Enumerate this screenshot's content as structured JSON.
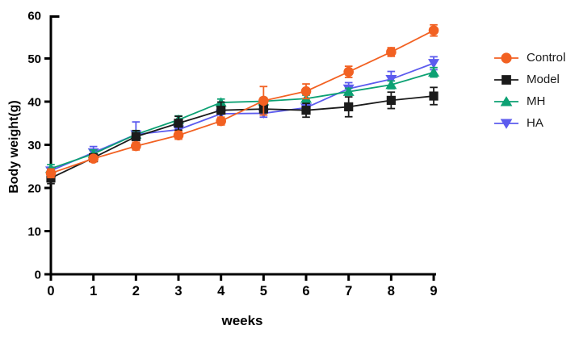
{
  "figure": {
    "background": "#ffffff",
    "axis_color": "#000000"
  },
  "chart_data": {
    "type": "line",
    "title": "",
    "xlabel": "weeks",
    "ylabel": "Body weight(g)",
    "x": [
      0,
      1,
      2,
      3,
      4,
      5,
      6,
      7,
      8,
      9
    ],
    "x_ticks": [
      0,
      1,
      2,
      3,
      4,
      5,
      6,
      7,
      8,
      9
    ],
    "y_ticks": [
      0,
      10,
      20,
      30,
      40,
      50,
      60
    ],
    "xlim": [
      0,
      9
    ],
    "ylim": [
      0,
      60
    ],
    "grid": false,
    "legend_position": "right",
    "error_bars": "sem, both directions with caps",
    "series": [
      {
        "name": "Control",
        "marker": "circle",
        "color": "#F26122",
        "values": [
          23.4,
          26.8,
          29.7,
          32.2,
          35.5,
          40.2,
          42.4,
          46.9,
          51.5,
          56.5
        ],
        "errors": [
          1.0,
          0.7,
          0.9,
          0.9,
          0.9,
          3.3,
          1.7,
          1.3,
          1.0,
          1.3
        ]
      },
      {
        "name": "Model",
        "marker": "square",
        "color": "#1b1b1b",
        "values": [
          22.3,
          27.0,
          31.9,
          35.0,
          38.0,
          38.3,
          38.0,
          38.8,
          40.3,
          41.3
        ],
        "errors": [
          1.3,
          0.9,
          1.4,
          1.6,
          1.9,
          1.4,
          1.6,
          2.3,
          1.9,
          2.0
        ]
      },
      {
        "name": "MH",
        "marker": "triangle-up",
        "color": "#0CA173",
        "values": [
          24.5,
          27.9,
          32.4,
          35.8,
          39.8,
          40.1,
          40.7,
          42.3,
          43.9,
          46.8
        ],
        "errors": [
          0.9,
          0.9,
          0.8,
          0.9,
          0.8,
          0.8,
          0.8,
          0.8,
          0.9,
          1.1
        ]
      },
      {
        "name": "HA",
        "marker": "triangle-down",
        "color": "#5C5BEE",
        "values": [
          24.0,
          28.2,
          32.4,
          33.5,
          37.2,
          37.3,
          38.6,
          43.0,
          45.2,
          48.9
        ],
        "errors": [
          0.8,
          1.4,
          2.9,
          1.0,
          1.1,
          0.9,
          0.9,
          1.4,
          1.8,
          1.5
        ]
      }
    ]
  }
}
